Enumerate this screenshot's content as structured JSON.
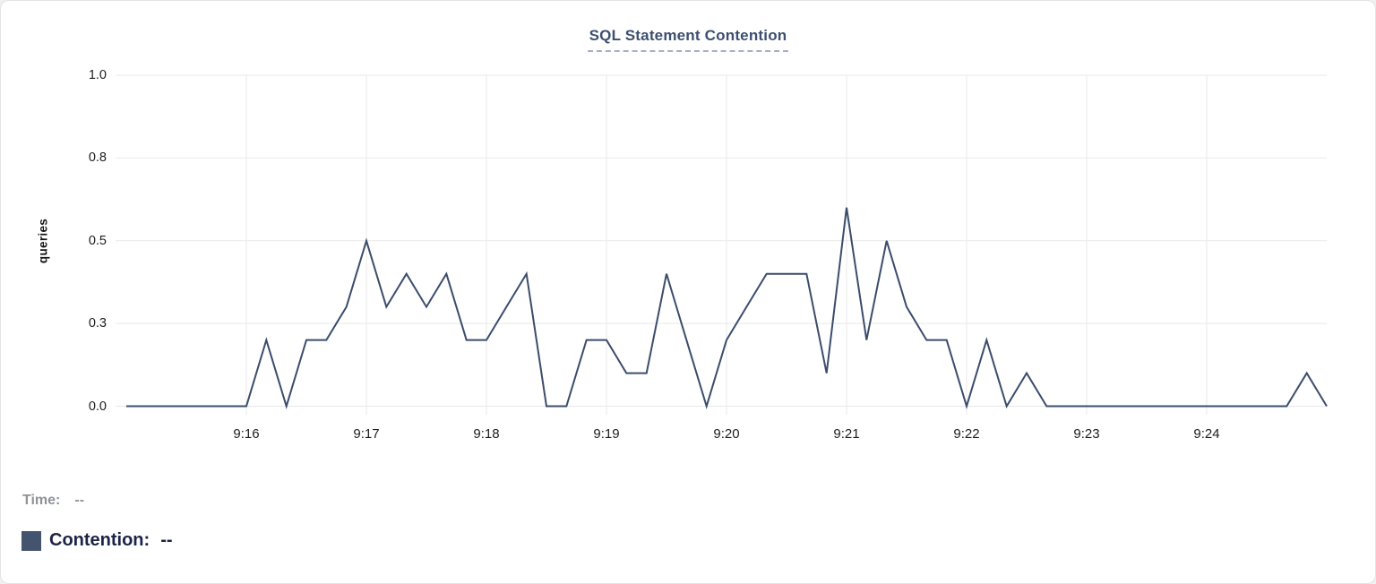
{
  "chart_data": {
    "type": "line",
    "title": "SQL Statement Contention",
    "ylabel": "queries",
    "xlabel": "",
    "ylim": [
      0,
      1
    ],
    "grid": true,
    "legend_position": "bottom-left",
    "y_ticks": [
      {
        "value": 0,
        "label": "0.0"
      },
      {
        "value": 0.25,
        "label": "0.3"
      },
      {
        "value": 0.5,
        "label": "0.5"
      },
      {
        "value": 0.75,
        "label": "0.8"
      },
      {
        "value": 1,
        "label": "1.0"
      }
    ],
    "x_ticks": [
      "9:16",
      "9:17",
      "9:18",
      "9:19",
      "9:20",
      "9:21",
      "9:22",
      "9:23",
      "9:24"
    ],
    "x_range": [
      "9:15:00",
      "9:25:00"
    ],
    "sample_interval_seconds": 10,
    "series": [
      {
        "name": "Contention",
        "color": "#3b4c6b",
        "x": [
          "9:15:00",
          "9:15:10",
          "9:15:20",
          "9:15:30",
          "9:15:40",
          "9:15:50",
          "9:16:00",
          "9:16:10",
          "9:16:20",
          "9:16:30",
          "9:16:40",
          "9:16:50",
          "9:17:00",
          "9:17:10",
          "9:17:20",
          "9:17:30",
          "9:17:40",
          "9:17:50",
          "9:18:00",
          "9:18:10",
          "9:18:20",
          "9:18:30",
          "9:18:40",
          "9:18:50",
          "9:19:00",
          "9:19:10",
          "9:19:20",
          "9:19:30",
          "9:19:40",
          "9:19:50",
          "9:20:00",
          "9:20:10",
          "9:20:20",
          "9:20:30",
          "9:20:40",
          "9:20:50",
          "9:21:00",
          "9:21:10",
          "9:21:20",
          "9:21:30",
          "9:21:40",
          "9:21:50",
          "9:22:00",
          "9:22:10",
          "9:22:20",
          "9:22:30",
          "9:22:40",
          "9:22:50",
          "9:23:00",
          "9:23:10",
          "9:23:20",
          "9:23:30",
          "9:23:40",
          "9:23:50",
          "9:24:00",
          "9:24:10",
          "9:24:20",
          "9:24:30",
          "9:24:40",
          "9:24:50",
          "9:25:00"
        ],
        "values": [
          0,
          0,
          0,
          0,
          0,
          0,
          0,
          0.2,
          0,
          0.2,
          0.2,
          0.3,
          0.5,
          0.3,
          0.4,
          0.3,
          0.4,
          0.2,
          0.2,
          0.3,
          0.4,
          0,
          0,
          0.2,
          0.2,
          0.1,
          0.1,
          0.4,
          0.2,
          0,
          0.2,
          0.3,
          0.4,
          0.4,
          0.4,
          0.1,
          0.6,
          0.2,
          0.5,
          0.3,
          0.2,
          0.2,
          0,
          0.2,
          0,
          0.1,
          0,
          0,
          0,
          0,
          0,
          0,
          0,
          0,
          0,
          0,
          0,
          0,
          0,
          0.1,
          0
        ]
      }
    ]
  },
  "legend": {
    "time_label": "Time:",
    "time_value": "--",
    "series_label": "Contention:",
    "series_value": "--",
    "swatch_color": "#44536e"
  },
  "colors": {
    "line": "#3b4c6b",
    "title": "#3d4f70",
    "title_underline": "#a8b0c6",
    "grid": "#e9e9e9",
    "tick_text": "#1d1d1f",
    "time_text": "#8f9298",
    "contention_text": "#1b2347",
    "card_background": "#ffffff",
    "card_border": "#e4e4e6"
  }
}
